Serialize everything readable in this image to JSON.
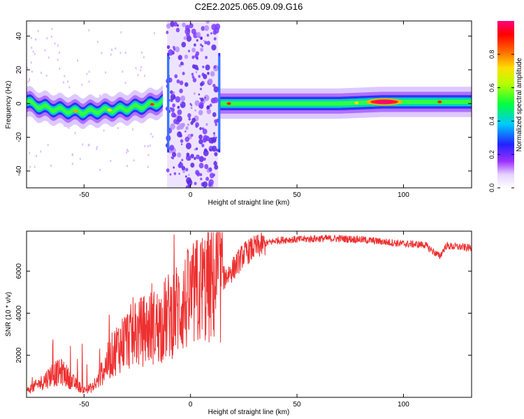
{
  "title": "C2E2.2025.065.09.09.G16",
  "chart_data": [
    {
      "type": "heatmap",
      "xlabel": "Height of straight line (km)",
      "ylabel": "Frequency (Hz)",
      "xlim": [
        -77,
        132
      ],
      "ylim": [
        -50,
        49
      ],
      "x_ticks": [
        -50,
        0,
        50,
        100
      ],
      "y_ticks": [
        -40,
        -20,
        0,
        20,
        40
      ],
      "colorbar": {
        "label": "Normalized spectral amplitude",
        "range": [
          0,
          1
        ],
        "ticks": [
          "0.0",
          "0.2",
          "0.4",
          "0.6",
          "0.8"
        ]
      },
      "ridge": {
        "x": [
          -77,
          -70,
          -60,
          -50,
          -40,
          -30,
          -20,
          -13,
          15,
          30,
          50,
          70,
          90,
          110,
          132
        ],
        "y": [
          1,
          -2,
          -4,
          -5,
          -4,
          -3,
          -1,
          1,
          0,
          0,
          0,
          0,
          1,
          1,
          1
        ]
      },
      "noise_band_km": [
        -11,
        13
      ],
      "peak_x_km": 91
    },
    {
      "type": "line",
      "xlabel": "Height of straight line (km)",
      "ylabel": "SNR (10 * v/v)",
      "xlim": [
        -77,
        132
      ],
      "ylim": [
        0,
        7900
      ],
      "x_ticks": [
        -50,
        0,
        50,
        100
      ],
      "y_ticks": [
        2000,
        4000,
        6000
      ],
      "series": [
        {
          "color": "#ee3030",
          "x": [
            -77,
            -70,
            -65,
            -60,
            -55,
            -50,
            -45,
            -40,
            -35,
            -30,
            -25,
            -20,
            -15,
            -10,
            -5,
            0,
            5,
            10,
            15,
            20,
            25,
            30,
            35,
            40,
            45,
            50,
            60,
            70,
            80,
            90,
            100,
            110,
            117,
            120,
            132
          ],
          "y": [
            300,
            700,
            1100,
            1200,
            700,
            350,
            500,
            1500,
            2300,
            2800,
            3000,
            3300,
            3400,
            3900,
            4300,
            4700,
            5100,
            5400,
            5600,
            6100,
            6800,
            7100,
            7300,
            7450,
            7500,
            7500,
            7550,
            7550,
            7500,
            7400,
            7300,
            7250,
            6700,
            7200,
            7100
          ]
        }
      ]
    }
  ]
}
